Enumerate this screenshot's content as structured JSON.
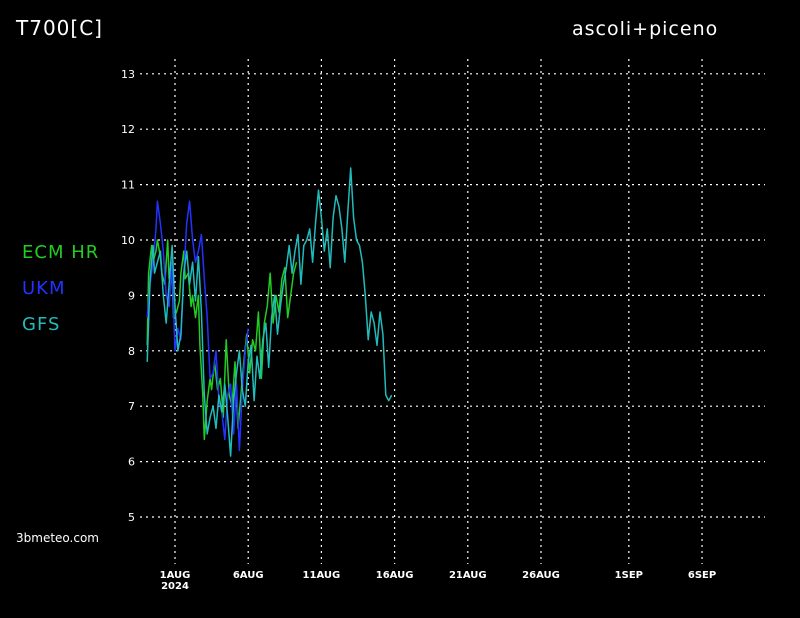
{
  "title": "T700[C]",
  "location": "ascoli+piceno",
  "credit": "3bmeteo.com",
  "colors": {
    "background": "#000000",
    "grid": "#ffffff",
    "ecm": "#22cc22",
    "ukm": "#2233ff",
    "gfs": "#22bbbb"
  },
  "chart_data": {
    "type": "line",
    "title": "T700[C]",
    "ylim": [
      5,
      13
    ],
    "yticks": [
      5,
      6,
      7,
      8,
      9,
      10,
      11,
      12,
      13
    ],
    "x_range_days": [
      -1,
      43
    ],
    "xticks": [
      {
        "day": 0,
        "label": "1AUG",
        "sublabel": "2024"
      },
      {
        "day": 5,
        "label": "6AUG",
        "sublabel": ""
      },
      {
        "day": 10,
        "label": "11AUG",
        "sublabel": ""
      },
      {
        "day": 15,
        "label": "16AUG",
        "sublabel": ""
      },
      {
        "day": 20,
        "label": "21AUG",
        "sublabel": ""
      },
      {
        "day": 25,
        "label": "26AUG",
        "sublabel": ""
      },
      {
        "day": 31,
        "label": "1SEP",
        "sublabel": ""
      },
      {
        "day": 36,
        "label": "6SEP",
        "sublabel": ""
      }
    ],
    "grid": true,
    "legend_position": "left",
    "series": [
      {
        "name": "ECM HR",
        "color": "#22cc22",
        "x": [
          -1.9,
          -1.8,
          -1.6,
          -1.5,
          -1.3,
          -1.2,
          -1.0,
          -0.9,
          -0.7,
          -0.5,
          -0.4,
          -0.2,
          -0.1,
          0.1,
          0.3,
          0.4,
          0.6,
          0.7,
          0.9,
          1.1,
          1.2,
          1.4,
          1.6,
          1.7,
          1.9,
          2.0,
          2.2,
          2.4,
          2.5,
          2.7,
          2.9,
          3.1,
          3.3,
          3.5,
          3.7,
          3.9,
          4.1,
          4.3,
          4.5,
          4.7,
          4.9,
          5.1,
          5.3,
          5.5,
          5.7,
          5.9,
          6.1,
          6.3,
          6.5,
          6.7,
          6.9,
          7.1,
          7.3,
          7.5,
          7.7,
          7.9,
          8.1,
          8.3
        ],
        "y": [
          8.1,
          9.4,
          9.9,
          9.6,
          9.8,
          10.0,
          9.7,
          9.4,
          9.2,
          10.0,
          9.3,
          9.4,
          8.6,
          8.7,
          8.9,
          9.4,
          9.8,
          9.3,
          9.4,
          8.8,
          9.0,
          8.6,
          9.0,
          8.1,
          7.2,
          6.4,
          7.1,
          7.5,
          7.3,
          7.8,
          7.3,
          7.5,
          6.8,
          8.2,
          7.2,
          7.0,
          7.8,
          6.6,
          7.2,
          7.8,
          8.3,
          7.6,
          8.2,
          8.0,
          8.7,
          7.5,
          8.5,
          8.8,
          9.4,
          8.5,
          9.0,
          8.7,
          9.3,
          9.5,
          8.6,
          9.0,
          9.4,
          9.6
        ]
      },
      {
        "name": "UKM",
        "color": "#2233ff",
        "x": [
          -1.9,
          -1.7,
          -1.5,
          -1.3,
          -1.2,
          -1.0,
          -0.8,
          -0.6,
          -0.4,
          -0.2,
          0.0,
          0.2,
          0.4,
          0.6,
          0.8,
          1.0,
          1.2,
          1.4,
          1.6,
          1.8,
          2.0,
          2.2,
          2.4,
          2.6,
          2.8,
          3.0,
          3.2,
          3.4,
          3.6,
          3.8,
          4.0,
          4.2,
          4.4,
          4.6,
          4.8,
          5.0
        ],
        "y": [
          8.6,
          9.2,
          9.6,
          10.2,
          10.7,
          10.3,
          9.8,
          9.0,
          8.8,
          9.6,
          8.0,
          8.4,
          8.2,
          9.4,
          10.3,
          10.7,
          10.0,
          9.6,
          9.8,
          10.1,
          9.3,
          8.6,
          7.5,
          7.6,
          8.0,
          7.1,
          6.9,
          6.4,
          7.2,
          7.4,
          6.5,
          7.4,
          6.2,
          7.3,
          8.0,
          8.4
        ]
      },
      {
        "name": "GFS",
        "color": "#22bbbb",
        "x": [
          -1.9,
          -1.7,
          -1.5,
          -1.4,
          -1.2,
          -1.0,
          -0.8,
          -0.6,
          -0.4,
          -0.2,
          0.0,
          0.2,
          0.4,
          0.6,
          0.8,
          1.0,
          1.2,
          1.4,
          1.6,
          1.8,
          2.0,
          2.2,
          2.4,
          2.6,
          2.8,
          3.0,
          3.2,
          3.4,
          3.6,
          3.8,
          4.0,
          4.2,
          4.4,
          4.6,
          4.8,
          5.0,
          5.2,
          5.4,
          5.6,
          5.8,
          6.0,
          6.2,
          6.4,
          6.6,
          6.8,
          7.0,
          7.2,
          7.4,
          7.6,
          7.8,
          8.0,
          8.2,
          8.4,
          8.6,
          8.8,
          9.0,
          9.2,
          9.4,
          9.6,
          9.8,
          10.0,
          10.2,
          10.4,
          10.6,
          10.8,
          11.0,
          11.2,
          11.4,
          11.6,
          11.8,
          12.0,
          12.2,
          12.4,
          12.6,
          12.8,
          13.0,
          13.2,
          13.4,
          13.6,
          13.8,
          14.0,
          14.2,
          14.4,
          14.6,
          14.8
        ],
        "y": [
          7.8,
          9.3,
          9.9,
          9.4,
          9.6,
          9.8,
          9.0,
          8.5,
          9.2,
          9.9,
          8.8,
          8.0,
          8.3,
          9.4,
          9.8,
          9.2,
          9.6,
          8.9,
          9.7,
          8.7,
          7.2,
          6.5,
          6.8,
          7.0,
          6.6,
          7.2,
          6.9,
          7.4,
          6.8,
          6.1,
          7.1,
          7.6,
          8.0,
          7.3,
          7.0,
          7.8,
          8.1,
          7.1,
          7.9,
          7.5,
          8.2,
          8.5,
          7.7,
          8.6,
          9.0,
          8.3,
          8.8,
          9.2,
          9.5,
          9.9,
          9.4,
          9.8,
          10.1,
          9.2,
          9.9,
          10.0,
          10.2,
          9.6,
          10.3,
          10.9,
          10.4,
          9.8,
          10.2,
          9.5,
          10.4,
          10.8,
          10.6,
          10.2,
          9.6,
          10.5,
          11.3,
          10.4,
          10.0,
          9.9,
          9.6,
          9.0,
          8.2,
          8.7,
          8.5,
          8.1,
          8.7,
          8.3,
          7.2,
          7.1,
          7.2
        ]
      }
    ]
  }
}
